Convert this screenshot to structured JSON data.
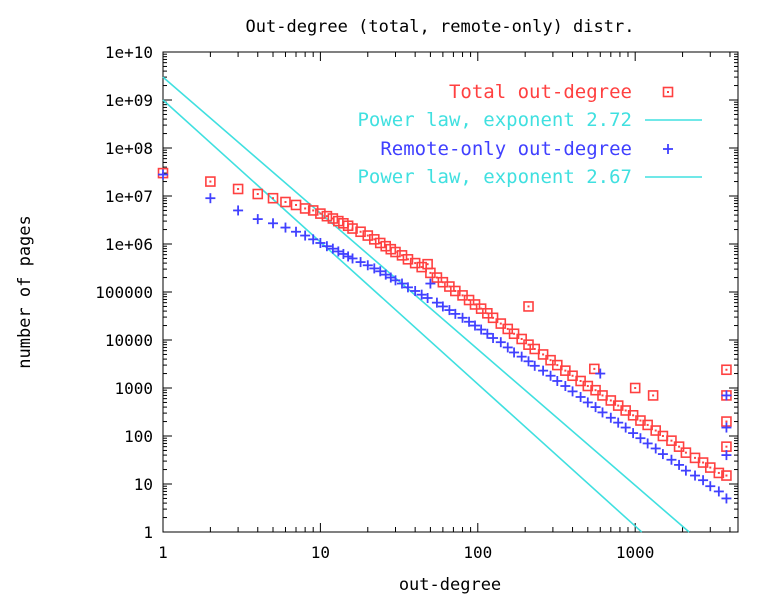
{
  "chart_data": {
    "type": "scatter",
    "title": "Out-degree (total, remote-only) distr.",
    "xlabel": "out-degree",
    "ylabel": "number of pages",
    "xscale": "log",
    "yscale": "log",
    "xlim": [
      1,
      4500
    ],
    "ylim": [
      1,
      10000000000
    ],
    "grid": false,
    "legend_position": "top-right",
    "x_tick_labels": [
      "1",
      "10",
      "100",
      "1000"
    ],
    "x_tick_values": [
      1,
      10,
      100,
      1000
    ],
    "y_tick_labels": [
      "1",
      "10",
      "100",
      "1000",
      "10000",
      "100000",
      "1e+06",
      "1e+07",
      "1e+08",
      "1e+09",
      "1e+10"
    ],
    "y_tick_values": [
      1,
      10,
      100,
      1000,
      10000,
      100000,
      1000000,
      10000000,
      100000000,
      1000000000,
      10000000000
    ],
    "series": [
      {
        "name": "Total out-degree",
        "kind": "points",
        "marker": "square",
        "color": "#ff4040",
        "points": [
          [
            1,
            30000000
          ],
          [
            2,
            20000000
          ],
          [
            3,
            14000000
          ],
          [
            4,
            11000000
          ],
          [
            5,
            9000000
          ],
          [
            6,
            7500000
          ],
          [
            7,
            6500000
          ],
          [
            8,
            5500000
          ],
          [
            9,
            5000000
          ],
          [
            10,
            4300000
          ],
          [
            11,
            3800000
          ],
          [
            12,
            3400000
          ],
          [
            13,
            3000000
          ],
          [
            14,
            2700000
          ],
          [
            15,
            2400000
          ],
          [
            16,
            2100000
          ],
          [
            18,
            1800000
          ],
          [
            20,
            1500000
          ],
          [
            22,
            1250000
          ],
          [
            24,
            1050000
          ],
          [
            26,
            900000
          ],
          [
            28,
            780000
          ],
          [
            30,
            680000
          ],
          [
            33,
            580000
          ],
          [
            36,
            480000
          ],
          [
            40,
            400000
          ],
          [
            44,
            330000
          ],
          [
            48,
            380000
          ],
          [
            50,
            250000
          ],
          [
            55,
            200000
          ],
          [
            60,
            160000
          ],
          [
            66,
            130000
          ],
          [
            72,
            105000
          ],
          [
            80,
            85000
          ],
          [
            88,
            68000
          ],
          [
            96,
            55000
          ],
          [
            105,
            45000
          ],
          [
            115,
            36000
          ],
          [
            125,
            29000
          ],
          [
            140,
            22000
          ],
          [
            155,
            17000
          ],
          [
            170,
            13500
          ],
          [
            190,
            10500
          ],
          [
            210,
            50000
          ],
          [
            210,
            8000
          ],
          [
            230,
            6500
          ],
          [
            260,
            5000
          ],
          [
            290,
            3800
          ],
          [
            320,
            3000
          ],
          [
            360,
            2300
          ],
          [
            400,
            1800
          ],
          [
            450,
            1400
          ],
          [
            500,
            1100
          ],
          [
            550,
            2500
          ],
          [
            560,
            900
          ],
          [
            620,
            700
          ],
          [
            700,
            550
          ],
          [
            780,
            430
          ],
          [
            870,
            340
          ],
          [
            970,
            270
          ],
          [
            1000,
            1000
          ],
          [
            1080,
            210
          ],
          [
            1200,
            170
          ],
          [
            1300,
            700
          ],
          [
            1350,
            130
          ],
          [
            1500,
            100
          ],
          [
            1700,
            80
          ],
          [
            1900,
            60
          ],
          [
            2100,
            45
          ],
          [
            2400,
            35
          ],
          [
            2700,
            28
          ],
          [
            3000,
            22
          ],
          [
            3400,
            17
          ],
          [
            3800,
            2400
          ],
          [
            3800,
            700
          ],
          [
            3800,
            200
          ],
          [
            3800,
            60
          ],
          [
            3800,
            15
          ]
        ]
      },
      {
        "name": "Power law, exponent 2.72",
        "kind": "line",
        "color": "#40e0e0",
        "points": [
          [
            1,
            3000000000
          ],
          [
            2200,
            1
          ]
        ]
      },
      {
        "name": "Remote-only out-degree",
        "kind": "points",
        "marker": "plus",
        "color": "#4040ff",
        "points": [
          [
            1,
            28000000
          ],
          [
            2,
            9000000
          ],
          [
            3,
            5000000
          ],
          [
            4,
            3300000
          ],
          [
            5,
            2700000
          ],
          [
            6,
            2200000
          ],
          [
            7,
            1800000
          ],
          [
            8,
            1500000
          ],
          [
            9,
            1250000
          ],
          [
            10,
            1050000
          ],
          [
            11,
            900000
          ],
          [
            12,
            800000
          ],
          [
            13,
            700000
          ],
          [
            14,
            620000
          ],
          [
            15,
            550000
          ],
          [
            16,
            500000
          ],
          [
            18,
            420000
          ],
          [
            20,
            360000
          ],
          [
            22,
            310000
          ],
          [
            24,
            270000
          ],
          [
            26,
            230000
          ],
          [
            28,
            200000
          ],
          [
            30,
            175000
          ],
          [
            33,
            150000
          ],
          [
            36,
            125000
          ],
          [
            40,
            105000
          ],
          [
            44,
            88000
          ],
          [
            48,
            75000
          ],
          [
            50,
            150000
          ],
          [
            55,
            60000
          ],
          [
            60,
            50000
          ],
          [
            66,
            42000
          ],
          [
            72,
            35000
          ],
          [
            80,
            29000
          ],
          [
            88,
            24000
          ],
          [
            96,
            20000
          ],
          [
            105,
            16500
          ],
          [
            115,
            13500
          ],
          [
            125,
            11000
          ],
          [
            140,
            9000
          ],
          [
            155,
            7000
          ],
          [
            170,
            5500
          ],
          [
            190,
            4500
          ],
          [
            210,
            3600
          ],
          [
            230,
            2900
          ],
          [
            260,
            2300
          ],
          [
            290,
            1800
          ],
          [
            320,
            1400
          ],
          [
            360,
            1100
          ],
          [
            400,
            850
          ],
          [
            450,
            650
          ],
          [
            500,
            500
          ],
          [
            560,
            400
          ],
          [
            600,
            2000
          ],
          [
            620,
            310
          ],
          [
            700,
            240
          ],
          [
            780,
            190
          ],
          [
            870,
            150
          ],
          [
            970,
            115
          ],
          [
            1080,
            90
          ],
          [
            1200,
            70
          ],
          [
            1350,
            55
          ],
          [
            1500,
            42
          ],
          [
            1700,
            32
          ],
          [
            1900,
            25
          ],
          [
            2100,
            19
          ],
          [
            2400,
            15
          ],
          [
            2700,
            12
          ],
          [
            3000,
            9
          ],
          [
            3400,
            7
          ],
          [
            3800,
            5
          ],
          [
            3800,
            700
          ],
          [
            3800,
            150
          ],
          [
            3800,
            40
          ]
        ]
      },
      {
        "name": "Power law, exponent 2.67",
        "kind": "line",
        "color": "#40e0e0",
        "points": [
          [
            1,
            1000000000
          ],
          [
            1100,
            1
          ]
        ]
      }
    ]
  }
}
